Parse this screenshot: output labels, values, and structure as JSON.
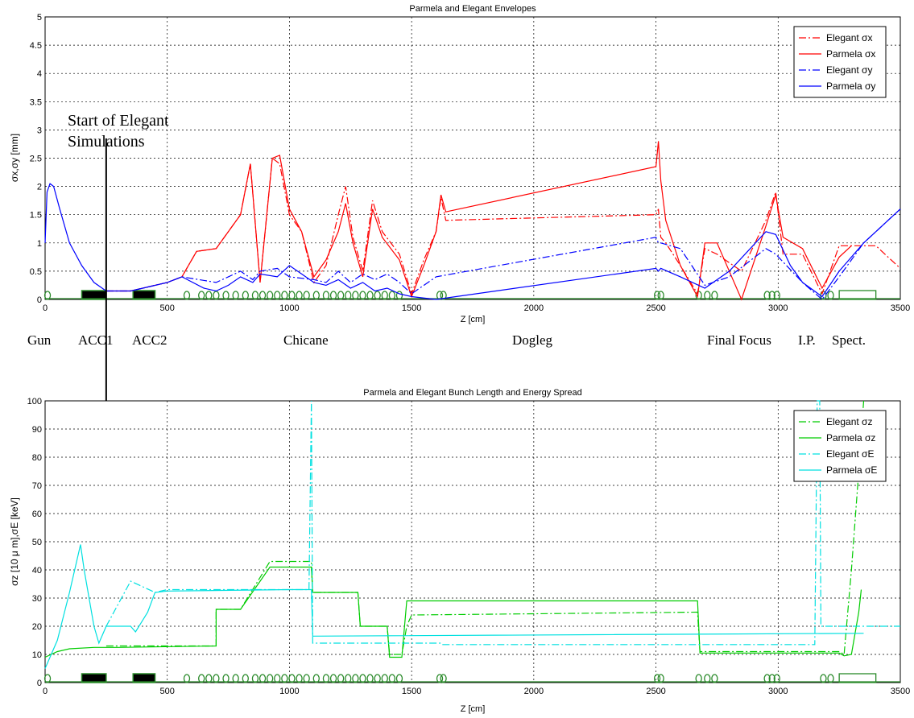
{
  "chart_data": [
    {
      "type": "line",
      "title": "Parmela and Elegant Envelopes",
      "xlabel": "Z [cm]",
      "ylabel": "σx,σy [mm]",
      "xlim": [
        0,
        3500
      ],
      "ylim": [
        0,
        5
      ],
      "xticks": [
        0,
        500,
        1000,
        1500,
        2000,
        2500,
        3000,
        3500
      ],
      "yticks": [
        0,
        0.5,
        1,
        1.5,
        2,
        2.5,
        3,
        3.5,
        4,
        4.5,
        5
      ],
      "grid": true,
      "legend_position": "top-right",
      "series": [
        {
          "name": "Elegant σx",
          "color": "#ff0000",
          "dash": "dashdot",
          "x": [
            250,
            350,
            500,
            560,
            620,
            700,
            800,
            840,
            880,
            930,
            960,
            1000,
            1050,
            1100,
            1150,
            1200,
            1230,
            1260,
            1300,
            1340,
            1380,
            1450,
            1500,
            1550,
            1600,
            1620,
            1640,
            2500,
            2510,
            2520,
            2540,
            2600,
            2670,
            2700,
            2750,
            2850,
            2950,
            2990,
            3020,
            3100,
            3180,
            3250,
            3300,
            3400,
            3450,
            3500
          ],
          "y": [
            0.15,
            0.15,
            0.3,
            0.4,
            0.85,
            0.9,
            1.5,
            2.4,
            0.3,
            2.5,
            2.4,
            1.5,
            1.2,
            0.3,
            0.6,
            1.5,
            2.0,
            1.1,
            0.5,
            1.75,
            1.2,
            0.8,
            0.1,
            0.7,
            1.2,
            1.8,
            1.4,
            1.5,
            1.6,
            1.1,
            1.0,
            0.6,
            0.1,
            0.9,
            0.8,
            0.5,
            1.4,
            1.9,
            0.8,
            0.8,
            0.1,
            0.95,
            0.95,
            0.95,
            0.75,
            0.55
          ]
        },
        {
          "name": "Parmela σx",
          "color": "#ff0000",
          "dash": "solid",
          "x": [
            250,
            350,
            500,
            560,
            620,
            700,
            800,
            840,
            880,
            930,
            960,
            1000,
            1050,
            1100,
            1150,
            1200,
            1230,
            1260,
            1300,
            1340,
            1380,
            1450,
            1500,
            1550,
            1600,
            1620,
            1640,
            2500,
            2510,
            2520,
            2540,
            2600,
            2670,
            2700,
            2750,
            2850,
            2950,
            2990,
            3020,
            3100,
            3180,
            3250,
            3300
          ],
          "y": [
            0.15,
            0.15,
            0.3,
            0.4,
            0.85,
            0.9,
            1.5,
            2.4,
            0.3,
            2.5,
            2.55,
            1.6,
            1.2,
            0.4,
            0.7,
            1.2,
            1.7,
            1.0,
            0.4,
            1.6,
            1.1,
            0.7,
            0.05,
            0.6,
            1.2,
            1.85,
            1.55,
            2.35,
            2.8,
            2.1,
            1.4,
            0.6,
            0.05,
            1.0,
            1.0,
            0.0,
            1.3,
            1.85,
            1.1,
            0.9,
            0.2,
            0.75,
            0.95
          ]
        },
        {
          "name": "Elegant σy",
          "color": "#0000ff",
          "dash": "dashdot",
          "x": [
            250,
            350,
            500,
            560,
            700,
            800,
            850,
            880,
            950,
            1000,
            1100,
            1150,
            1200,
            1250,
            1300,
            1350,
            1400,
            1450,
            1500,
            1600,
            2500,
            2510,
            2520,
            2600,
            2700,
            2800,
            2950,
            2990,
            3100,
            3180,
            3250,
            3350,
            3500
          ],
          "y": [
            0.15,
            0.15,
            0.3,
            0.4,
            0.3,
            0.5,
            0.35,
            0.5,
            0.55,
            0.4,
            0.35,
            0.3,
            0.5,
            0.3,
            0.45,
            0.35,
            0.45,
            0.3,
            0.1,
            0.4,
            1.1,
            1.0,
            1.0,
            0.9,
            0.25,
            0.4,
            0.9,
            0.8,
            0.3,
            0.0,
            0.4,
            1.0,
            1.6
          ]
        },
        {
          "name": "Parmela σy",
          "color": "#0000ff",
          "dash": "solid",
          "x": [
            0,
            8,
            20,
            35,
            60,
            100,
            150,
            200,
            250,
            300,
            350,
            400,
            500,
            560,
            650,
            700,
            750,
            800,
            850,
            880,
            950,
            1000,
            1050,
            1100,
            1150,
            1200,
            1250,
            1300,
            1350,
            1400,
            1450,
            1500,
            1600,
            2500,
            2510,
            2520,
            2600,
            2700,
            2800,
            2950,
            2990,
            3050,
            3100,
            3180,
            3250,
            3350,
            3500
          ],
          "y": [
            1.0,
            1.9,
            2.05,
            2.0,
            1.6,
            1.0,
            0.6,
            0.3,
            0.15,
            0.15,
            0.15,
            0.2,
            0.3,
            0.4,
            0.2,
            0.15,
            0.25,
            0.4,
            0.3,
            0.45,
            0.4,
            0.6,
            0.45,
            0.3,
            0.25,
            0.35,
            0.2,
            0.3,
            0.15,
            0.2,
            0.1,
            0.05,
            0.0,
            0.55,
            0.5,
            0.55,
            0.4,
            0.2,
            0.5,
            1.2,
            1.15,
            0.6,
            0.3,
            0.05,
            0.5,
            1.0,
            1.6
          ]
        }
      ],
      "annotations": {
        "start_line1": "Start of Elegant",
        "start_line2": "Simulations",
        "start_x": 250
      },
      "section_labels": [
        "Gun",
        "ACC1",
        "ACC2",
        "Chicane",
        "Dogleg",
        "Final Focus",
        "I.P.",
        "Spect."
      ]
    },
    {
      "type": "line",
      "title": "Parmela and Elegant Bunch Length and Energy Spread",
      "xlabel": "Z [cm]",
      "ylabel": "σz [10 μ m],σE [keV]",
      "xlim": [
        0,
        3500
      ],
      "ylim": [
        0,
        100
      ],
      "xticks": [
        0,
        500,
        1000,
        1500,
        2000,
        2500,
        3000,
        3500
      ],
      "yticks": [
        0,
        10,
        20,
        30,
        40,
        50,
        60,
        70,
        80,
        90,
        100
      ],
      "grid": true,
      "legend_position": "top-right",
      "series": [
        {
          "name": "Elegant σz",
          "color": "#00cc00",
          "dash": "dashdot",
          "x": [
            250,
            700,
            700,
            800,
            920,
            940,
            1090,
            1095,
            1280,
            1290,
            1400,
            1410,
            1460,
            1480,
            1500,
            2670,
            2680,
            3250,
            3270,
            3300,
            3330,
            3350
          ],
          "y": [
            13,
            13,
            26,
            26,
            43,
            43,
            43,
            32,
            32,
            20,
            20,
            10,
            10,
            20,
            24,
            25,
            11,
            11,
            10,
            40,
            75,
            100
          ]
        },
        {
          "name": "Parmela σz",
          "color": "#00cc00",
          "dash": "solid",
          "x": [
            0,
            50,
            100,
            200,
            300,
            700,
            700,
            800,
            920,
            940,
            1090,
            1095,
            1280,
            1290,
            1400,
            1410,
            1460,
            1480,
            2670,
            2680,
            3250,
            3270,
            3300,
            3330,
            3340
          ],
          "y": [
            9,
            11,
            12,
            12.5,
            12.5,
            13,
            26,
            26,
            41,
            41,
            41,
            32,
            32,
            20,
            20,
            9,
            9,
            29,
            29,
            10.5,
            10.5,
            9.5,
            10,
            25,
            33
          ]
        },
        {
          "name": "Elegant σE",
          "color": "#00e0e0",
          "dash": "dashdot",
          "x": [
            250,
            350,
            400,
            450,
            500,
            1080,
            1090,
            1095,
            1620,
            1625,
            3150,
            3160,
            3170,
            3175,
            3500
          ],
          "y": [
            20,
            36,
            34,
            32,
            33,
            33,
            100,
            14,
            14,
            13.5,
            13.5,
            100,
            100,
            20,
            20
          ]
        },
        {
          "name": "Parmela σE",
          "color": "#00e0e0",
          "dash": "solid",
          "x": [
            0,
            50,
            100,
            145,
            160,
            200,
            220,
            250,
            300,
            350,
            370,
            420,
            450,
            500,
            1000,
            1090,
            1095,
            3350
          ],
          "y": [
            5,
            15,
            32,
            49,
            40,
            20,
            14,
            20,
            20,
            20,
            18,
            25,
            32,
            32.5,
            33,
            33,
            16.5,
            17.5
          ]
        }
      ],
      "start_x": 250
    }
  ]
}
